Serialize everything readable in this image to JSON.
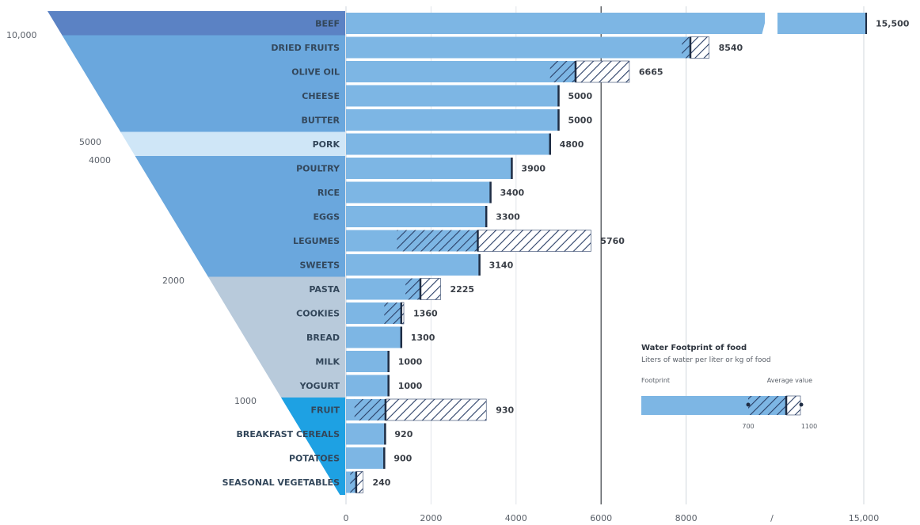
{
  "chart_data": {
    "type": "bar",
    "orientation": "horizontal",
    "categories": [
      "BEEF",
      "DRIED FRUITS",
      "OLIVE OIL",
      "CHEESE",
      "BUTTER",
      "PORK",
      "POULTRY",
      "RICE",
      "EGGS",
      "LEGUMES",
      "SWEETS",
      "PASTA",
      "COOKIES",
      "BREAD",
      "MILK",
      "YOGURT",
      "FRUIT",
      "BREAKFAST CEREALS",
      "POTATOES",
      "SEASONAL VEGETABLES"
    ],
    "values": [
      15500,
      8540,
      6665,
      5000,
      5000,
      4800,
      3900,
      3400,
      3300,
      5760,
      3140,
      2225,
      1360,
      1300,
      1000,
      1000,
      930,
      920,
      900,
      240
    ],
    "value_labels": [
      "15,500",
      "8540",
      "6665",
      "5000",
      "5000",
      "4800",
      "3900",
      "3400",
      "3300",
      "5760",
      "3140",
      "2225",
      "1360",
      "1300",
      "1000",
      "1000",
      "930",
      "920",
      "900",
      "240"
    ],
    "ranges": [
      null,
      {
        "min": 7900,
        "mark": 8100,
        "max": 8540
      },
      {
        "min": 4800,
        "mark": 5400,
        "max": 6665
      },
      null,
      null,
      null,
      null,
      null,
      null,
      {
        "min": 1200,
        "mark": 3100,
        "max": 5760
      },
      null,
      {
        "min": 1400,
        "mark": 1750,
        "max": 2225
      },
      {
        "min": 900,
        "mark": 1300,
        "max": 1360
      },
      null,
      null,
      null,
      {
        "min": 200,
        "mark": 930,
        "max": 3300
      },
      null,
      null,
      {
        "min": 100,
        "mark": 240,
        "max": 400
      }
    ],
    "x_ticks": [
      "0",
      "2000",
      "4000",
      "6000",
      "8000",
      "15,000"
    ],
    "xlim": [
      0,
      15500
    ],
    "axis_break": "between 8000 and 15,000",
    "pyramid_levels": [
      "10,000",
      "5000",
      "4000",
      "2000",
      "1000"
    ],
    "legend": {
      "title": "Water Footprint of food",
      "subtitle": "Liters of water per liter or kg of food",
      "min_label": "Footprint",
      "max_label": "Average value",
      "low_value": "700",
      "high_value": "1100"
    },
    "colors": {
      "bar": "#7db6e4",
      "bar_edge": "#5a9bd4",
      "band_top": "#5b82c4",
      "band_high": "#6aa7dd",
      "band_pork": "#cfe6f7",
      "band_mid": "#b8cadb",
      "band_low": "#1ea1e3",
      "hatch": "#2a3f66",
      "marker": "#1f2d44"
    }
  }
}
